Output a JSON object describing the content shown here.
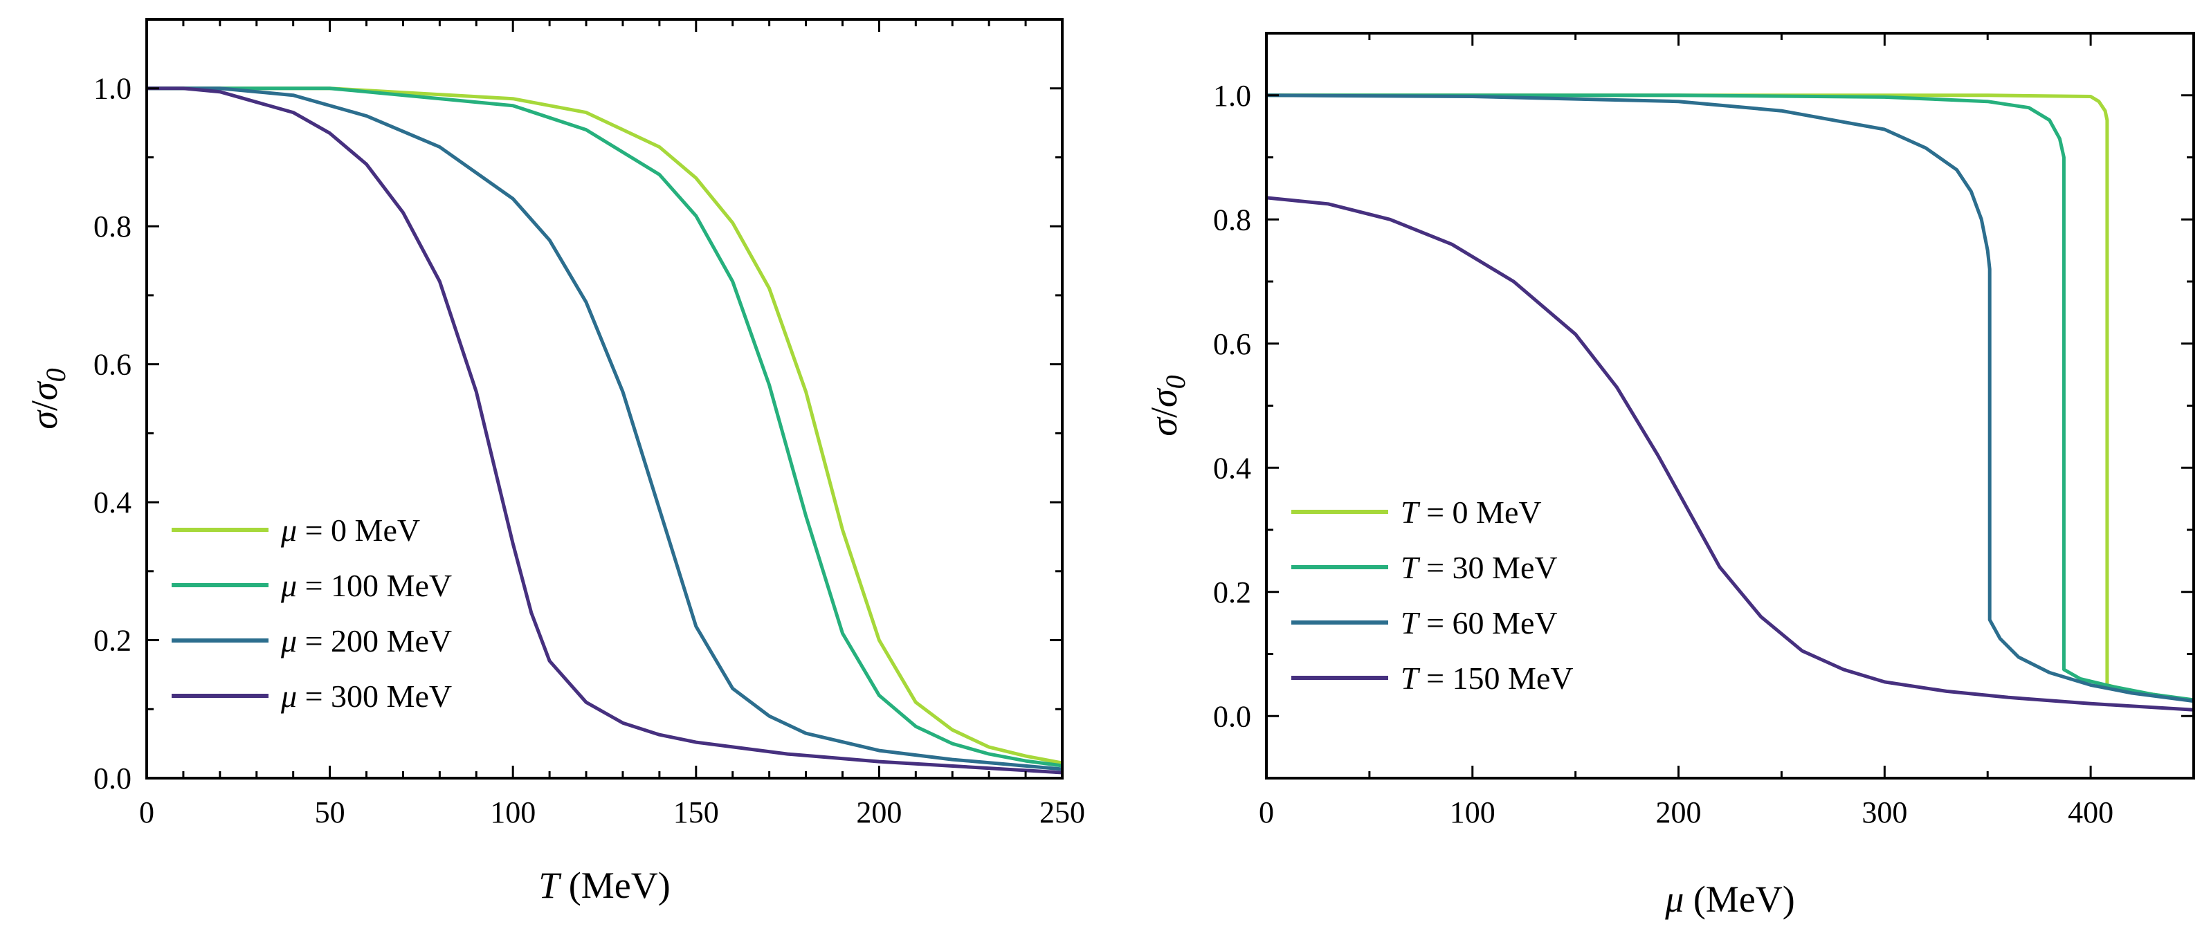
{
  "chart_data": [
    {
      "type": "line",
      "xlabel": "T (MeV)",
      "xlabel_var": "T",
      "xlabel_unit": " (MeV)",
      "ylabel": "σ/σ0",
      "xlim": [
        0,
        250
      ],
      "ylim": [
        0,
        1.1
      ],
      "xticks": [
        0,
        50,
        100,
        150,
        200,
        250
      ],
      "yticks": [
        0.0,
        0.2,
        0.4,
        0.6,
        0.8,
        1.0
      ],
      "xtick_labels": [
        "0",
        "50",
        "100",
        "150",
        "200",
        "250"
      ],
      "ytick_labels": [
        "0.0",
        "0.2",
        "0.4",
        "0.6",
        "0.8",
        "1.0"
      ],
      "legend_position": "lower-left",
      "series": [
        {
          "name": "μ = 0 MeV",
          "var": "μ",
          "rest": " = 0 MeV",
          "color": "#a6d83a",
          "x": [
            0,
            50,
            100,
            120,
            140,
            150,
            160,
            170,
            180,
            190,
            200,
            210,
            220,
            230,
            240,
            250
          ],
          "y": [
            1.0,
            1.0,
            0.985,
            0.965,
            0.915,
            0.87,
            0.805,
            0.71,
            0.56,
            0.36,
            0.2,
            0.11,
            0.07,
            0.045,
            0.032,
            0.022
          ]
        },
        {
          "name": "μ = 100 MeV",
          "var": "μ",
          "rest": " = 100 MeV",
          "color": "#26b07d",
          "x": [
            0,
            50,
            100,
            120,
            140,
            150,
            160,
            170,
            180,
            190,
            200,
            210,
            220,
            230,
            240,
            250
          ],
          "y": [
            1.0,
            1.0,
            0.975,
            0.94,
            0.875,
            0.815,
            0.72,
            0.57,
            0.38,
            0.21,
            0.12,
            0.075,
            0.05,
            0.035,
            0.025,
            0.018
          ]
        },
        {
          "name": "μ = 200 MeV",
          "var": "μ",
          "rest": " = 200 MeV",
          "color": "#2c6e8e",
          "x": [
            0,
            20,
            40,
            60,
            80,
            100,
            110,
            120,
            130,
            140,
            150,
            160,
            170,
            180,
            200,
            220,
            250
          ],
          "y": [
            1.0,
            1.0,
            0.99,
            0.96,
            0.915,
            0.84,
            0.78,
            0.69,
            0.56,
            0.39,
            0.22,
            0.13,
            0.09,
            0.065,
            0.04,
            0.027,
            0.013
          ]
        },
        {
          "name": "μ = 300 MeV",
          "var": "μ",
          "rest": " = 300 MeV",
          "color": "#46307f",
          "x": [
            0,
            10,
            20,
            30,
            40,
            50,
            60,
            70,
            80,
            90,
            95,
            100,
            105,
            110,
            120,
            130,
            140,
            150,
            175,
            200,
            250
          ],
          "y": [
            1.0,
            1.0,
            0.995,
            0.98,
            0.965,
            0.935,
            0.89,
            0.82,
            0.72,
            0.56,
            0.45,
            0.34,
            0.24,
            0.17,
            0.11,
            0.08,
            0.063,
            0.052,
            0.035,
            0.024,
            0.008
          ]
        }
      ]
    },
    {
      "type": "line",
      "xlabel": "μ (MeV)",
      "xlabel_var": "μ",
      "xlabel_unit": " (MeV)",
      "ylabel": "σ/σ0",
      "xlim": [
        0,
        450
      ],
      "ylim": [
        -0.1,
        1.1
      ],
      "xticks": [
        0,
        100,
        200,
        300,
        400
      ],
      "yticks": [
        0.0,
        0.2,
        0.4,
        0.6,
        0.8,
        1.0
      ],
      "xtick_labels": [
        "0",
        "100",
        "200",
        "300",
        "400"
      ],
      "ytick_labels": [
        "0.0",
        "0.2",
        "0.4",
        "0.6",
        "0.8",
        "1.0"
      ],
      "legend_position": "lower-left",
      "series": [
        {
          "name": "T = 0 MeV",
          "var": "T",
          "rest": " = 0 MeV",
          "color": "#a6d83a",
          "x": [
            0,
            200,
            350,
            400,
            404,
            407,
            408,
            408,
            420,
            440,
            450
          ],
          "y": [
            1.0,
            1.0,
            1.0,
            0.998,
            0.99,
            0.975,
            0.96,
            0.05,
            0.04,
            0.03,
            0.024
          ]
        },
        {
          "name": "T = 30 MeV",
          "var": "T",
          "rest": " = 30 MeV",
          "color": "#26b07d",
          "x": [
            0,
            200,
            300,
            350,
            370,
            380,
            385,
            387,
            387,
            395,
            410,
            430,
            450
          ],
          "y": [
            1.0,
            1.0,
            0.997,
            0.99,
            0.98,
            0.96,
            0.93,
            0.9,
            0.075,
            0.06,
            0.048,
            0.035,
            0.026
          ]
        },
        {
          "name": "T = 60 MeV",
          "var": "T",
          "rest": " = 60 MeV",
          "color": "#2c6e8e",
          "x": [
            0,
            100,
            200,
            250,
            300,
            320,
            335,
            342,
            347,
            350,
            351,
            351,
            356,
            365,
            380,
            400,
            420,
            450
          ],
          "y": [
            1.0,
            0.998,
            0.99,
            0.975,
            0.945,
            0.915,
            0.88,
            0.845,
            0.8,
            0.75,
            0.72,
            0.155,
            0.125,
            0.095,
            0.07,
            0.05,
            0.037,
            0.024
          ]
        },
        {
          "name": "T = 150 MeV",
          "var": "T",
          "rest": " = 150 MeV",
          "color": "#46307f",
          "x": [
            0,
            30,
            60,
            90,
            120,
            150,
            170,
            190,
            200,
            210,
            220,
            240,
            260,
            280,
            300,
            330,
            360,
            400,
            450
          ],
          "y": [
            0.835,
            0.825,
            0.8,
            0.76,
            0.7,
            0.615,
            0.53,
            0.42,
            0.36,
            0.3,
            0.24,
            0.16,
            0.105,
            0.075,
            0.055,
            0.04,
            0.03,
            0.02,
            0.01
          ]
        }
      ]
    }
  ]
}
